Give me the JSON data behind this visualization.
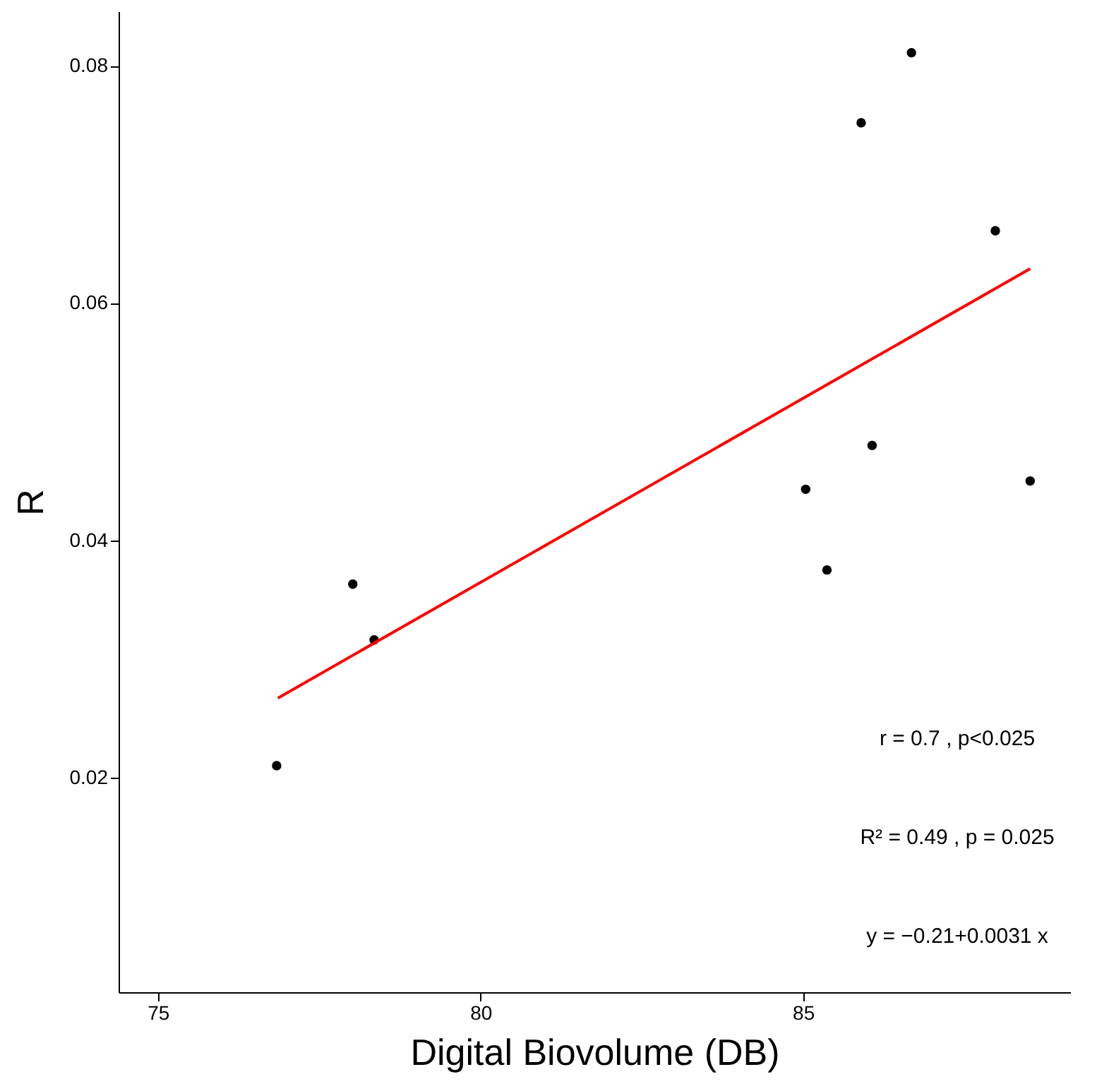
{
  "chart_data": {
    "type": "scatter",
    "xlabel": "Digital Biovolume (DB)",
    "ylabel": "R",
    "xlim": [
      74.39,
      89.14
    ],
    "xticks": [
      75,
      80,
      85
    ],
    "ylim": [
      0.0019,
      0.0846
    ],
    "yticks": [
      0.02,
      0.04,
      0.06,
      0.08
    ],
    "series": [
      {
        "marker": "circle",
        "color": "#000000",
        "x": [
          76.84,
          78.02,
          78.35,
          85.04,
          85.37,
          85.9,
          86.07,
          86.68,
          87.98,
          88.52
        ],
        "values": [
          0.021,
          0.0363,
          0.0316,
          0.0443,
          0.0375,
          0.0752,
          0.048,
          0.0811,
          0.0661,
          0.045
        ]
      },
      {
        "type": "line",
        "color": "#ff0000",
        "x": [
          76.86,
          88.52
        ],
        "values": [
          0.0267,
          0.0629
        ]
      }
    ],
    "annotations": [
      "r = 0.7 , p<0.025",
      "R² = 0.49 , p = 0.025",
      "y = −0.21+0.0031 x"
    ]
  }
}
